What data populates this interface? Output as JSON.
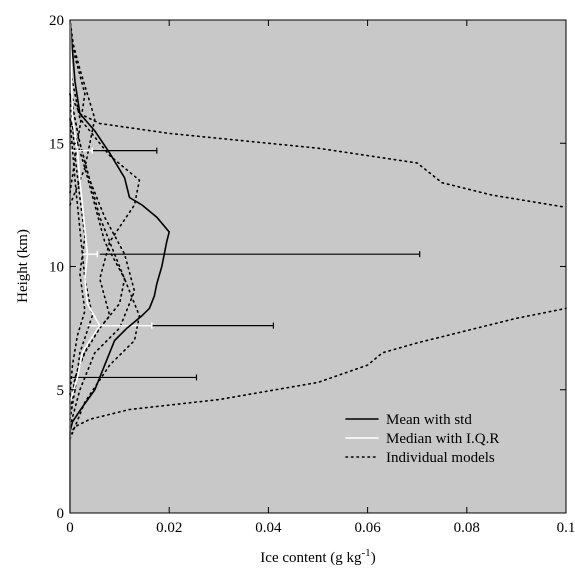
{
  "colors": {
    "plot_background": "#c8c8c8",
    "mean_line": "#000000",
    "median_line": "#ffffff",
    "model_lines": "#000000"
  },
  "chart_data": {
    "type": "line",
    "orientation": "vertical-profile",
    "xlabel": "Ice content (g kg",
    "xlabel_sup": "-1",
    "xlabel_end": ")",
    "ylabel": "Height (km)",
    "xlim": [
      0,
      0.1
    ],
    "ylim": [
      0,
      20
    ],
    "grid": false,
    "legend_position": "bottom-right",
    "xticks": [
      0,
      0.02,
      0.04,
      0.06,
      0.08,
      0.1
    ],
    "xtick_labels": [
      "0",
      "0.02",
      "0.04",
      "0.06",
      "0.08",
      "0.1"
    ],
    "yticks": [
      0,
      5,
      10,
      15,
      20
    ],
    "ytick_labels": [
      "0",
      "5",
      "10",
      "15",
      "20"
    ],
    "legend": [
      {
        "label": "Mean with std",
        "style": "solid-black"
      },
      {
        "label": "Median with I.Q.R",
        "style": "solid-white"
      },
      {
        "label": "Individual models",
        "style": "dotted-black"
      }
    ],
    "mean": {
      "name": "Mean with std",
      "x": [
        0,
        0,
        0.0005,
        0.0025,
        0.005,
        0.007,
        0.009,
        0.0115,
        0.0145,
        0.016,
        0.017,
        0.0175,
        0.0185,
        0.0195,
        0.02,
        0.0175,
        0.0145,
        0.012,
        0.011,
        0.008,
        0.005,
        0.002,
        0.001,
        0
      ],
      "y": [
        0,
        3.3,
        3.7,
        4.3,
        5.0,
        6.0,
        7.0,
        7.5,
        8.0,
        8.3,
        8.8,
        9.3,
        10.0,
        11.0,
        11.4,
        12.0,
        12.5,
        12.8,
        13.6,
        14.6,
        15.5,
        16.2,
        17.5,
        20
      ]
    },
    "median": {
      "name": "Median with I.Q.R",
      "x": [
        0,
        0,
        0.0015,
        0.0025,
        0.004,
        0.006,
        0.0035,
        0.003,
        0.0035,
        0.003,
        0.0025,
        0.002,
        0.0015,
        0.0005,
        0
      ],
      "y": [
        0,
        4.5,
        5.5,
        6.5,
        7.0,
        7.6,
        8.5,
        9.5,
        10.5,
        11.5,
        12.5,
        13.5,
        14.7,
        16.0,
        20
      ]
    },
    "std_bars": [
      {
        "y": 14.7,
        "x_start": 0.0045,
        "x_end": 0.0175
      },
      {
        "y": 10.5,
        "x_start": 0.006,
        "x_end": 0.0705
      },
      {
        "y": 7.6,
        "x_start": 0.0165,
        "x_end": 0.041
      },
      {
        "y": 5.5,
        "x_start": 0.0005,
        "x_end": 0.0255
      }
    ],
    "iqr_bars": [
      {
        "y": 14.7,
        "x_start": 0.0,
        "x_end": 0.0045
      },
      {
        "y": 10.5,
        "x_start": 0.0025,
        "x_end": 0.0055
      },
      {
        "y": 7.6,
        "x_start": 0.0035,
        "x_end": 0.0165
      }
    ],
    "models": [
      {
        "x": [
          0,
          0.001,
          0.004,
          0.012,
          0.03,
          0.05,
          0.06,
          0.063,
          0.07,
          0.08,
          0.09,
          0.1
        ],
        "y": [
          3.2,
          3.5,
          3.8,
          4.2,
          4.6,
          5.3,
          6.0,
          6.5,
          6.9,
          7.4,
          7.9,
          8.3
        ]
      },
      {
        "x": [
          0,
          0.002,
          0.006,
          0.02,
          0.05,
          0.07,
          0.075,
          0.085,
          0.1
        ],
        "y": [
          17.0,
          16.2,
          15.8,
          15.4,
          14.8,
          14.2,
          13.4,
          12.9,
          12.4
        ]
      },
      {
        "x": [
          0,
          0.003,
          0.008,
          0.013,
          0.014,
          0.012,
          0.009,
          0.006,
          0.004,
          0.002,
          0
        ],
        "y": [
          3.0,
          4.5,
          6.0,
          7.0,
          8.0,
          9.0,
          10.5,
          12.0,
          13.5,
          15.0,
          17.0
        ]
      },
      {
        "x": [
          0,
          0.002,
          0.005,
          0.01,
          0.013,
          0.011,
          0.007,
          0.004,
          0.002,
          0
        ],
        "y": [
          3.5,
          5.0,
          6.5,
          7.5,
          9.0,
          10.5,
          12.0,
          13.5,
          15.0,
          17.0
        ]
      },
      {
        "x": [
          0,
          0.001,
          0.003,
          0.006,
          0.01,
          0.011,
          0.007,
          0.005,
          0.003,
          0
        ],
        "y": [
          4.0,
          5.5,
          6.5,
          7.5,
          8.5,
          9.5,
          11.0,
          12.5,
          14.0,
          16.0
        ]
      },
      {
        "x": [
          0,
          0.0015,
          0.004,
          0.008,
          0.006,
          0.008,
          0.013,
          0.014,
          0.008,
          0.002,
          0
        ],
        "y": [
          4.5,
          5.8,
          7.0,
          8.0,
          9.5,
          11.0,
          12.5,
          13.5,
          14.5,
          16.0,
          18.0
        ]
      },
      {
        "x": [
          0,
          0.001,
          0.002,
          0.0045,
          0.003,
          0.002,
          0.001,
          0
        ],
        "y": [
          3.8,
          5.0,
          6.5,
          8.0,
          9.5,
          11.5,
          13.5,
          16.0
        ]
      },
      {
        "x": [
          0,
          0.0005,
          0.0015,
          0.003,
          0.002,
          0.003,
          0.002,
          0.001,
          0
        ],
        "y": [
          4.8,
          6.0,
          7.2,
          8.2,
          9.7,
          11.2,
          12.8,
          14.5,
          17.0
        ]
      },
      {
        "x": [
          0,
          0.003,
          0.005,
          0.002,
          0
        ],
        "y": [
          12.5,
          14.0,
          16.0,
          18.0,
          19.5
        ]
      },
      {
        "x": [
          0,
          0.0015,
          0.003,
          0.001,
          0
        ],
        "y": [
          13.0,
          15.0,
          17.0,
          18.5,
          20.0
        ]
      }
    ]
  }
}
